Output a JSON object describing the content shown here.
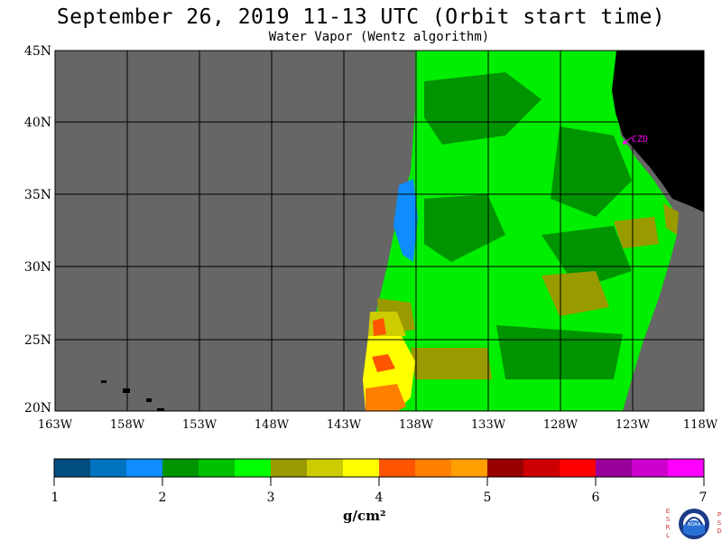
{
  "title": "September 26, 2019  11-13 UTC  (Orbit start time)",
  "subtitle": "Water Vapor (Wentz algorithm)",
  "map": {
    "lat_ticks": [
      "45N",
      "40N",
      "35N",
      "30N",
      "25N",
      "20N"
    ],
    "lon_ticks": [
      "163W",
      "158W",
      "153W",
      "148W",
      "143W",
      "138W",
      "133W",
      "128W",
      "123W",
      "118W"
    ],
    "station_label": "CZD",
    "colors": {
      "no_data": "#666666",
      "land": "#000000",
      "grid": "#000000",
      "station": "#ff00ff"
    }
  },
  "colorbar": {
    "tick_labels": [
      "1",
      "2",
      "3",
      "4",
      "5",
      "6",
      "7"
    ],
    "units": "g/cm²",
    "colors": [
      "#004d80",
      "#0073c0",
      "#0f8cff",
      "#009400",
      "#00c000",
      "#00ff00",
      "#999900",
      "#cccc00",
      "#ffff00",
      "#ff5500",
      "#ff7f00",
      "#ff9f00",
      "#990000",
      "#cc0000",
      "#ff0000",
      "#990099",
      "#cc00cc",
      "#ff00ff"
    ]
  },
  "logo": {
    "left_letters": "ESRL",
    "right_letters": "PSD",
    "center_text": "NOAA"
  }
}
